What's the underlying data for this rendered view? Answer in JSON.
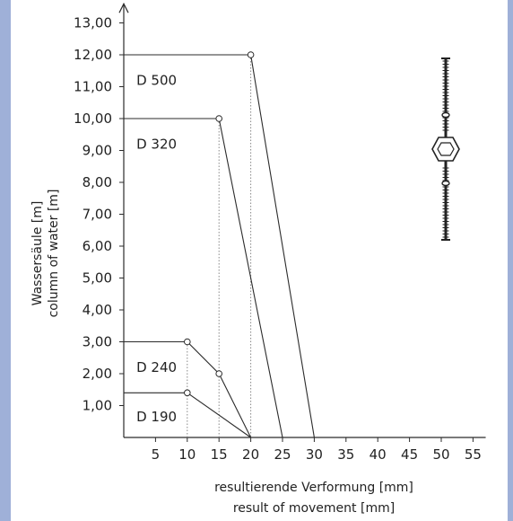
{
  "chart_data": {
    "type": "line",
    "ylabel_de": "Wassersäule [m]",
    "ylabel_en": "column of water [m]",
    "xlabel_de": "resultierende Verformung [mm]",
    "xlabel_en": "result of movement [mm]",
    "xlim": [
      0,
      57
    ],
    "ylim": [
      0,
      13.6
    ],
    "x_ticks": [
      "5",
      "10",
      "15",
      "20",
      "25",
      "30",
      "35",
      "40",
      "45",
      "50",
      "55"
    ],
    "y_ticks": [
      "1,00",
      "2,00",
      "3,00",
      "4,00",
      "5,00",
      "6,00",
      "7,00",
      "8,00",
      "9,00",
      "10,00",
      "11,00",
      "12,00",
      "13,00"
    ],
    "series": [
      {
        "name": "D 500",
        "points": [
          [
            20,
            12
          ],
          [
            30,
            0
          ]
        ],
        "leader": [
          [
            0,
            12
          ],
          [
            20,
            12
          ]
        ],
        "label_pos": [
          1,
          11.2
        ]
      },
      {
        "name": "D 320",
        "points": [
          [
            15,
            10
          ],
          [
            25,
            0
          ]
        ],
        "leader": [
          [
            0,
            10
          ],
          [
            15,
            10
          ]
        ],
        "label_pos": [
          1,
          9.2
        ]
      },
      {
        "name": "D 240",
        "points": [
          [
            10,
            3
          ],
          [
            15,
            2
          ],
          [
            20,
            0
          ]
        ],
        "leader": [
          [
            0,
            3
          ],
          [
            10,
            3
          ]
        ],
        "label_pos": [
          1,
          2.2
        ]
      },
      {
        "name": "D 190",
        "points": [
          [
            10,
            1.4
          ],
          [
            20,
            0
          ]
        ],
        "leader": [
          [
            0,
            1.4
          ],
          [
            10,
            1.4
          ]
        ],
        "label_pos": [
          1,
          0.65
        ]
      }
    ],
    "guides": [
      [
        10,
        3
      ],
      [
        15,
        10
      ],
      [
        20,
        12
      ]
    ],
    "grid": false,
    "legend": "none"
  }
}
